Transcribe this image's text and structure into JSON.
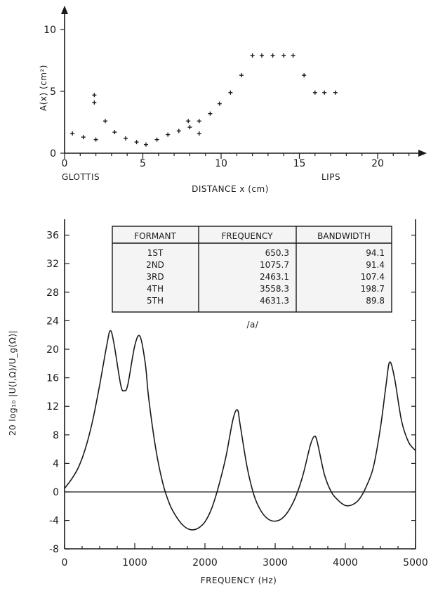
{
  "chart_data": [
    {
      "type": "scatter",
      "x": [
        0.5,
        1.2,
        2.0,
        1.9,
        1.9,
        2.6,
        3.2,
        3.9,
        4.6,
        5.2,
        5.9,
        6.6,
        7.3,
        8.0,
        8.6,
        9.3,
        9.9,
        10.6,
        11.3,
        12.0,
        12.6,
        13.3,
        14.0,
        14.6,
        15.3,
        16.0,
        16.6,
        17.3,
        7.9,
        8.6
      ],
      "y": [
        1.6,
        1.3,
        1.1,
        4.1,
        4.7,
        2.6,
        1.7,
        1.2,
        0.9,
        0.7,
        1.1,
        1.5,
        1.8,
        2.1,
        2.6,
        3.2,
        4.0,
        4.9,
        6.3,
        7.9,
        7.9,
        7.9,
        7.9,
        7.9,
        6.3,
        4.9,
        4.9,
        4.9,
        2.6,
        1.6
      ],
      "xlim": [
        0,
        23
      ],
      "ylim": [
        0,
        11
      ],
      "xticks": [
        "0",
        "5",
        "10",
        "15",
        "20"
      ],
      "yticks": [
        "0",
        "5",
        "10"
      ],
      "xlabel": "DISTANCE x (cm)",
      "ylabel": "A(x) (cm²)",
      "left_end_label": "GLOTTIS",
      "right_end_label": "LIPS"
    },
    {
      "type": "line",
      "x": [
        0,
        100,
        200,
        300,
        400,
        500,
        600,
        650,
        700,
        800,
        850,
        900,
        1000,
        1075,
        1150,
        1200,
        1300,
        1400,
        1500,
        1600,
        1700,
        1800,
        1900,
        2000,
        2100,
        2200,
        2300,
        2400,
        2463,
        2500,
        2600,
        2700,
        2800,
        2900,
        3000,
        3100,
        3200,
        3300,
        3400,
        3500,
        3558,
        3600,
        3700,
        3800,
        3900,
        4000,
        4100,
        4200,
        4300,
        4400,
        4500,
        4580,
        4631,
        4700,
        4800,
        4900,
        5000
      ],
      "y": [
        0.5,
        1.8,
        3.5,
        6.2,
        10,
        15,
        20.5,
        22.6,
        21,
        15,
        14.2,
        15,
        20.5,
        21.8,
        18,
        13,
        6,
        1.2,
        -1.8,
        -3.6,
        -4.8,
        -5.3,
        -5.1,
        -4.2,
        -2.2,
        1,
        5,
        10.2,
        11.5,
        9.5,
        3.5,
        -0.5,
        -2.7,
        -3.8,
        -4.1,
        -3.7,
        -2.5,
        -0.5,
        2.5,
        6.5,
        7.8,
        7,
        2.5,
        0,
        -1.2,
        -1.9,
        -1.8,
        -1,
        0.8,
        3.5,
        9,
        15,
        18.2,
        16,
        10,
        7,
        5.8
      ],
      "xlim": [
        0,
        5000
      ],
      "ylim": [
        -8,
        38
      ],
      "xticks": [
        "0",
        "1000",
        "2000",
        "3000",
        "4000",
        "5000"
      ],
      "yticks": [
        "-8",
        "-4",
        "0",
        "4",
        "8",
        "12",
        "16",
        "20",
        "24",
        "28",
        "32",
        "36"
      ],
      "xlabel": "FREQUENCY (Hz)",
      "ylabel": "20 log₁₀ |U(l,Ω)/U_g(Ω)|",
      "table": {
        "columns": [
          "FORMANT",
          "FREQUENCY",
          "BANDWIDTH"
        ],
        "rows": [
          [
            "1ST",
            "650.3",
            "94.1"
          ],
          [
            "2ND",
            "1075.7",
            "91.4"
          ],
          [
            "3RD",
            "2463.1",
            "107.4"
          ],
          [
            "4TH",
            "3558.3",
            "198.7"
          ],
          [
            "5TH",
            "4631.3",
            "89.8"
          ]
        ],
        "caption": "/a/"
      }
    }
  ]
}
